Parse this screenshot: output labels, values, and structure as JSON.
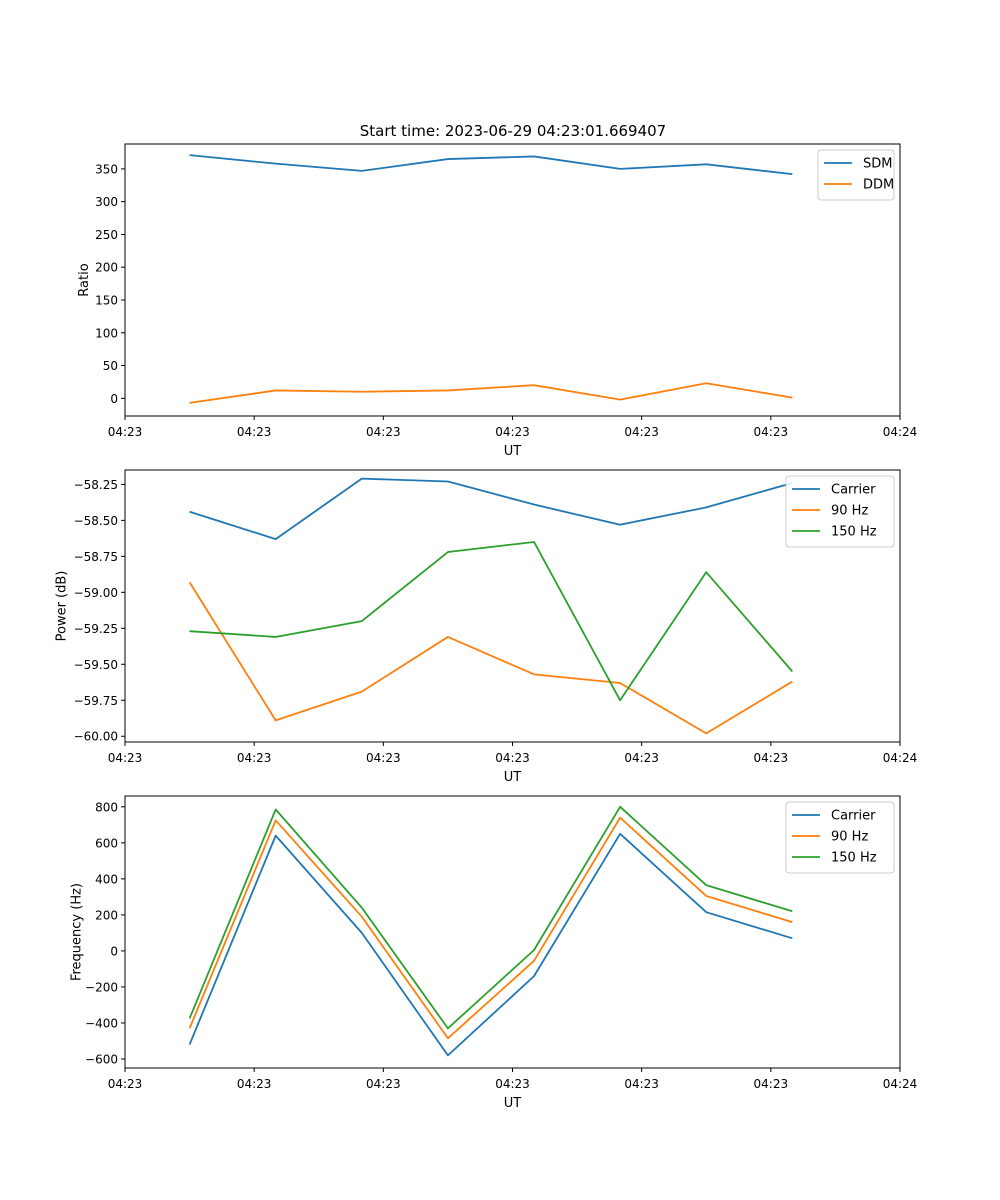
{
  "figure_title": "Start time: 2023-06-29 04:23:01.669407",
  "chart_data": [
    {
      "type": "line",
      "title": "Start time: 2023-06-29 04:23:01.669407",
      "xlabel": "UT",
      "ylabel": "Ratio",
      "x": [
        1,
        2,
        3,
        4,
        5,
        6,
        7,
        8
      ],
      "xlim": [
        0.25,
        9.25
      ],
      "x_ticks": [
        0.25,
        1.75,
        3.25,
        4.75,
        6.25,
        7.75,
        9.25
      ],
      "x_tick_labels": [
        "04:23",
        "04:23",
        "04:23",
        "04:23",
        "04:23",
        "04:23",
        "04:24"
      ],
      "ylim": [
        -27,
        388
      ],
      "y_ticks": [
        0,
        50,
        100,
        150,
        200,
        250,
        300,
        350
      ],
      "y_tick_labels": [
        "0",
        "50",
        "100",
        "150",
        "200",
        "250",
        "300",
        "350"
      ],
      "legend_position": "top-right",
      "grid": false,
      "series": [
        {
          "name": "SDM",
          "color": "#1f77b4",
          "values": [
            371,
            358,
            347,
            365,
            369,
            350,
            357,
            342
          ]
        },
        {
          "name": "DDM",
          "color": "#ff7f0e",
          "values": [
            -7,
            12,
            10,
            12,
            20,
            -2,
            23,
            1
          ]
        }
      ]
    },
    {
      "type": "line",
      "title": "",
      "xlabel": "UT",
      "ylabel": "Power (dB)",
      "x": [
        1,
        2,
        3,
        4,
        5,
        6,
        7,
        8
      ],
      "xlim": [
        0.25,
        9.25
      ],
      "x_ticks": [
        0.25,
        1.75,
        3.25,
        4.75,
        6.25,
        7.75,
        9.25
      ],
      "x_tick_labels": [
        "04:23",
        "04:23",
        "04:23",
        "04:23",
        "04:23",
        "04:23",
        "04:24"
      ],
      "ylim": [
        -60.04,
        -58.15
      ],
      "y_ticks": [
        -60.0,
        -59.75,
        -59.5,
        -59.25,
        -59.0,
        -58.75,
        -58.5,
        -58.25
      ],
      "y_tick_labels": [
        "−60.00",
        "−59.75",
        "−59.50",
        "−59.25",
        "−59.00",
        "−58.75",
        "−58.50",
        "−58.25"
      ],
      "legend_position": "top-right",
      "grid": false,
      "series": [
        {
          "name": "Carrier",
          "color": "#1f77b4",
          "values": [
            -58.44,
            -58.63,
            -58.21,
            -58.23,
            -58.39,
            -58.53,
            -58.41,
            -58.24
          ]
        },
        {
          "name": "90 Hz",
          "color": "#ff7f0e",
          "values": [
            -58.93,
            -59.89,
            -59.69,
            -59.31,
            -59.57,
            -59.63,
            -59.98,
            -59.62
          ]
        },
        {
          "name": "150 Hz",
          "color": "#2ca02c",
          "values": [
            -59.27,
            -59.31,
            -59.2,
            -58.72,
            -58.65,
            -59.75,
            -58.86,
            -59.55
          ]
        }
      ]
    },
    {
      "type": "line",
      "title": "",
      "xlabel": "UT",
      "ylabel": "Frequency (Hz)",
      "x": [
        1,
        2,
        3,
        4,
        5,
        6,
        7,
        8
      ],
      "xlim": [
        0.25,
        9.25
      ],
      "x_ticks": [
        0.25,
        1.75,
        3.25,
        4.75,
        6.25,
        7.75,
        9.25
      ],
      "x_tick_labels": [
        "04:23",
        "04:23",
        "04:23",
        "04:23",
        "04:23",
        "04:23",
        "04:24"
      ],
      "ylim": [
        -650,
        860
      ],
      "y_ticks": [
        -600,
        -400,
        -200,
        0,
        200,
        400,
        600,
        800
      ],
      "y_tick_labels": [
        "−600",
        "−400",
        "−200",
        "0",
        "200",
        "400",
        "600",
        "800"
      ],
      "legend_position": "top-right",
      "grid": false,
      "series": [
        {
          "name": "Carrier",
          "color": "#1f77b4",
          "values": [
            -520,
            640,
            100,
            -580,
            -140,
            650,
            215,
            70
          ]
        },
        {
          "name": "90 Hz",
          "color": "#ff7f0e",
          "values": [
            -430,
            725,
            190,
            -485,
            -55,
            740,
            305,
            160
          ]
        },
        {
          "name": "150 Hz",
          "color": "#2ca02c",
          "values": [
            -375,
            785,
            240,
            -430,
            5,
            800,
            365,
            220
          ]
        }
      ]
    }
  ]
}
